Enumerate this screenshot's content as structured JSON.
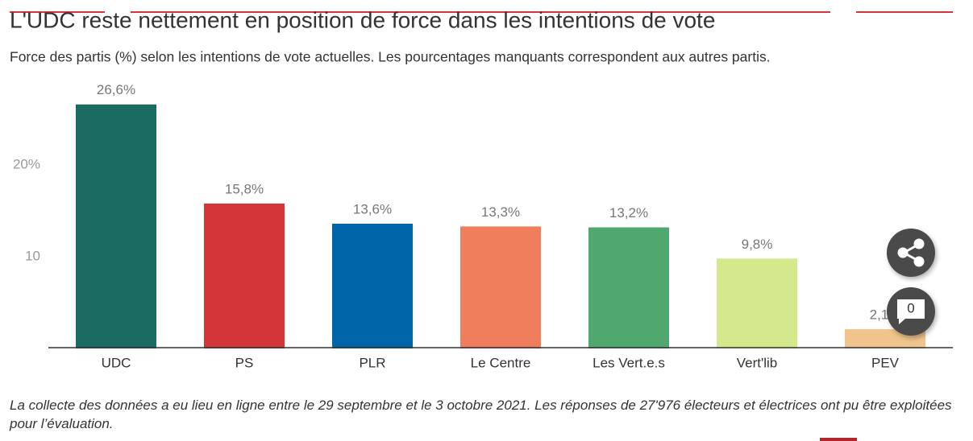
{
  "chart_data": {
    "type": "bar",
    "title": "L'UDC reste nettement en position de force dans les intentions de vote",
    "subtitle": "Force des partis (%) selon les intentions de vote actuelles. Les pourcentages manquants correspondent aux autres partis.",
    "categories": [
      "UDC",
      "PS",
      "PLR",
      "Le Centre",
      "Les Vert.e.s",
      "Vert'lib",
      "PEV"
    ],
    "values": [
      26.6,
      15.8,
      13.6,
      13.3,
      13.2,
      9.8,
      2.1
    ],
    "value_labels": [
      "26,6%",
      "15,8%",
      "13,6%",
      "13,3%",
      "13,2%",
      "9,8%",
      "2,1%"
    ],
    "colors": [
      "#1c6b62",
      "#d43538",
      "#0064a8",
      "#f07e5c",
      "#50a86e",
      "#d4e88c",
      "#f0c48c"
    ],
    "ylim": [
      0,
      29
    ],
    "yticks": [
      {
        "value": 20,
        "label": "20%"
      },
      10
    ],
    "grid": false,
    "note": "La collecte des données a eu lieu en ligne entre le 29 septembre et le 3 octobre 2021. Les réponses de 27'976 électeurs et électrices ont pu être exploitées pour l’évaluation."
  },
  "ui": {
    "comment_count": "0"
  }
}
